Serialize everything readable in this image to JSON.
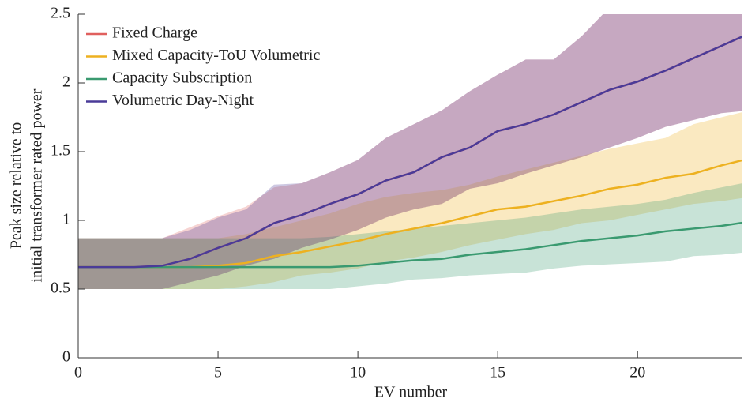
{
  "chart_data": {
    "type": "line",
    "xlabel": "EV number",
    "ylabel": [
      "Peak size relative to",
      "initial transformer rated power"
    ],
    "x": [
      0,
      1,
      2,
      3,
      4,
      5,
      6,
      7,
      8,
      9,
      10,
      11,
      12,
      13,
      14,
      15,
      16,
      17,
      18,
      19,
      20,
      21,
      22,
      23,
      24
    ],
    "xlim": [
      0,
      23.75
    ],
    "xticks": [
      0,
      5,
      10,
      15,
      20
    ],
    "ylim": [
      0,
      2.5
    ],
    "yticks": [
      0,
      0.5,
      1,
      1.5,
      2,
      2.5
    ],
    "legend": "upper left",
    "series": [
      {
        "name": "Fixed Charge",
        "color": "#e0605e",
        "values": [
          0.66,
          0.66,
          0.66,
          0.67,
          0.72,
          0.8,
          0.87,
          0.98,
          1.04,
          1.12,
          1.19,
          1.29,
          1.35,
          1.46,
          1.53,
          1.65,
          1.7,
          1.77,
          1.86,
          1.95,
          2.01,
          2.09,
          2.18,
          2.27,
          2.36
        ],
        "lower": [
          0.5,
          0.5,
          0.5,
          0.5,
          0.55,
          0.6,
          0.67,
          0.72,
          0.8,
          0.86,
          0.93,
          1.02,
          1.08,
          1.12,
          1.23,
          1.27,
          1.34,
          1.4,
          1.46,
          1.53,
          1.6,
          1.68,
          1.73,
          1.78,
          1.8
        ],
        "upper": [
          0.87,
          0.87,
          0.87,
          0.87,
          0.95,
          1.03,
          1.1,
          1.24,
          1.27,
          1.35,
          1.44,
          1.6,
          1.7,
          1.8,
          1.94,
          2.06,
          2.17,
          2.17,
          2.34,
          2.55,
          2.6,
          2.7,
          2.8,
          2.9,
          3.0
        ]
      },
      {
        "name": "Mixed Capacity-ToU Volumetric",
        "color": "#edb120",
        "values": [
          0.66,
          0.66,
          0.66,
          0.66,
          0.66,
          0.67,
          0.69,
          0.74,
          0.77,
          0.81,
          0.85,
          0.9,
          0.94,
          0.98,
          1.03,
          1.08,
          1.1,
          1.14,
          1.18,
          1.23,
          1.26,
          1.31,
          1.34,
          1.4,
          1.45
        ],
        "lower": [
          0.5,
          0.5,
          0.5,
          0.5,
          0.5,
          0.5,
          0.52,
          0.55,
          0.6,
          0.62,
          0.65,
          0.7,
          0.73,
          0.77,
          0.82,
          0.86,
          0.9,
          0.93,
          0.98,
          1.0,
          1.04,
          1.08,
          1.12,
          1.14,
          1.17
        ],
        "upper": [
          0.87,
          0.87,
          0.87,
          0.87,
          0.87,
          0.87,
          0.9,
          0.95,
          1.0,
          1.05,
          1.12,
          1.17,
          1.2,
          1.22,
          1.26,
          1.32,
          1.37,
          1.42,
          1.47,
          1.52,
          1.56,
          1.6,
          1.7,
          1.75,
          1.8
        ]
      },
      {
        "name": "Capacity Subscription",
        "color": "#3a9a70",
        "values": [
          0.66,
          0.66,
          0.66,
          0.66,
          0.66,
          0.66,
          0.66,
          0.66,
          0.66,
          0.66,
          0.67,
          0.69,
          0.71,
          0.72,
          0.75,
          0.77,
          0.79,
          0.82,
          0.85,
          0.87,
          0.89,
          0.92,
          0.94,
          0.96,
          0.99
        ],
        "lower": [
          0.5,
          0.5,
          0.5,
          0.5,
          0.5,
          0.5,
          0.5,
          0.5,
          0.5,
          0.5,
          0.52,
          0.54,
          0.57,
          0.58,
          0.6,
          0.61,
          0.62,
          0.65,
          0.67,
          0.68,
          0.69,
          0.7,
          0.74,
          0.75,
          0.77
        ],
        "upper": [
          0.87,
          0.87,
          0.87,
          0.87,
          0.87,
          0.87,
          0.87,
          0.87,
          0.87,
          0.88,
          0.9,
          0.92,
          0.94,
          0.96,
          0.98,
          1.0,
          1.02,
          1.05,
          1.08,
          1.1,
          1.12,
          1.15,
          1.2,
          1.24,
          1.28
        ]
      },
      {
        "name": "Volumetric Day-Night",
        "color": "#4a3b98",
        "values": [
          0.66,
          0.66,
          0.66,
          0.67,
          0.72,
          0.8,
          0.87,
          0.98,
          1.04,
          1.12,
          1.19,
          1.29,
          1.35,
          1.46,
          1.53,
          1.65,
          1.7,
          1.77,
          1.86,
          1.95,
          2.01,
          2.09,
          2.18,
          2.27,
          2.36
        ],
        "lower": [
          0.5,
          0.5,
          0.5,
          0.5,
          0.55,
          0.6,
          0.67,
          0.72,
          0.8,
          0.86,
          0.93,
          1.02,
          1.08,
          1.12,
          1.23,
          1.27,
          1.34,
          1.4,
          1.46,
          1.53,
          1.6,
          1.68,
          1.73,
          1.78,
          1.8
        ],
        "upper": [
          0.87,
          0.87,
          0.87,
          0.87,
          0.93,
          1.02,
          1.08,
          1.26,
          1.27,
          1.35,
          1.44,
          1.6,
          1.7,
          1.8,
          1.94,
          2.06,
          2.17,
          2.17,
          2.34,
          2.55,
          2.6,
          2.7,
          2.8,
          2.9,
          3.0
        ]
      }
    ]
  }
}
